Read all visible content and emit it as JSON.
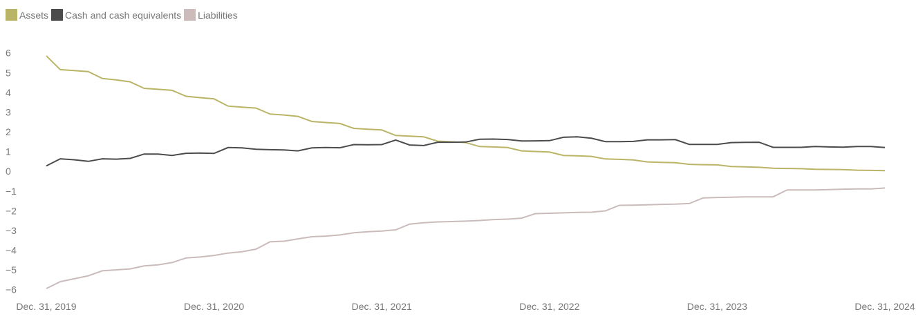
{
  "chart_data": {
    "type": "line",
    "categories": [
      "Dec. 31, 2019",
      null,
      null,
      null,
      null,
      null,
      null,
      null,
      null,
      null,
      null,
      null,
      "Dec. 31, 2020",
      null,
      null,
      null,
      null,
      null,
      null,
      null,
      null,
      null,
      null,
      null,
      "Dec. 31, 2021",
      null,
      null,
      null,
      null,
      null,
      null,
      null,
      null,
      null,
      null,
      null,
      "Dec. 31, 2022",
      null,
      null,
      null,
      null,
      null,
      null,
      null,
      null,
      null,
      null,
      null,
      "Dec. 31, 2023",
      null,
      null,
      null,
      null,
      null,
      null,
      null,
      null,
      null,
      null,
      null,
      "Dec. 31, 2024"
    ],
    "series": [
      {
        "name": "Assets",
        "color": "#b9b466",
        "values": [
          5.9,
          5.2,
          5.15,
          5.1,
          4.75,
          4.68,
          4.58,
          4.25,
          4.2,
          4.15,
          3.85,
          3.78,
          3.72,
          3.35,
          3.3,
          3.25,
          2.95,
          2.9,
          2.83,
          2.57,
          2.52,
          2.47,
          2.22,
          2.18,
          2.14,
          1.86,
          1.83,
          1.79,
          1.57,
          1.54,
          1.5,
          1.3,
          1.28,
          1.25,
          1.08,
          1.05,
          1.02,
          0.85,
          0.83,
          0.8,
          0.67,
          0.65,
          0.62,
          0.52,
          0.5,
          0.48,
          0.4,
          0.38,
          0.37,
          0.29,
          0.27,
          0.25,
          0.2,
          0.19,
          0.18,
          0.15,
          0.14,
          0.13,
          0.1,
          0.09,
          0.08
        ]
      },
      {
        "name": "Cash and cash equivalents",
        "color": "#4b4b4b",
        "values": [
          0.32,
          0.68,
          0.63,
          0.55,
          0.68,
          0.66,
          0.7,
          0.92,
          0.92,
          0.85,
          0.96,
          0.97,
          0.95,
          1.25,
          1.23,
          1.16,
          1.14,
          1.13,
          1.08,
          1.23,
          1.25,
          1.24,
          1.4,
          1.39,
          1.4,
          1.63,
          1.38,
          1.35,
          1.52,
          1.52,
          1.53,
          1.67,
          1.68,
          1.66,
          1.58,
          1.59,
          1.6,
          1.77,
          1.79,
          1.72,
          1.55,
          1.55,
          1.56,
          1.64,
          1.64,
          1.65,
          1.41,
          1.41,
          1.41,
          1.5,
          1.51,
          1.52,
          1.26,
          1.26,
          1.26,
          1.3,
          1.28,
          1.27,
          1.3,
          1.3,
          1.25
        ]
      },
      {
        "name": "Liabilities",
        "color": "#cbbbbb",
        "values": [
          -5.9,
          -5.55,
          -5.4,
          -5.25,
          -5.0,
          -4.95,
          -4.9,
          -4.75,
          -4.7,
          -4.58,
          -4.35,
          -4.3,
          -4.22,
          -4.1,
          -4.03,
          -3.9,
          -3.53,
          -3.5,
          -3.38,
          -3.27,
          -3.24,
          -3.18,
          -3.07,
          -3.02,
          -2.98,
          -2.92,
          -2.63,
          -2.56,
          -2.52,
          -2.5,
          -2.48,
          -2.45,
          -2.4,
          -2.38,
          -2.33,
          -2.1,
          -2.08,
          -2.06,
          -2.04,
          -2.03,
          -1.96,
          -1.68,
          -1.67,
          -1.65,
          -1.63,
          -1.62,
          -1.59,
          -1.3,
          -1.28,
          -1.27,
          -1.25,
          -1.25,
          -1.25,
          -0.9,
          -0.9,
          -0.9,
          -0.88,
          -0.86,
          -0.85,
          -0.85,
          -0.8
        ]
      }
    ],
    "ylim": [
      -6,
      6
    ],
    "yticks": [
      6,
      5,
      4,
      3,
      2,
      1,
      0,
      {
        "value": -1,
        "label": "−1"
      },
      {
        "value": -2,
        "label": "−2"
      },
      {
        "value": -3,
        "label": "−3"
      },
      {
        "value": -4,
        "label": "−4"
      },
      {
        "value": -5,
        "label": "−5"
      },
      {
        "value": -6,
        "label": "−6"
      }
    ],
    "grid": false,
    "legend": "top-left"
  }
}
